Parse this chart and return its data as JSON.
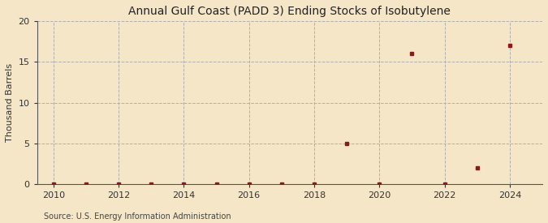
{
  "title": "Annual Gulf Coast (PADD 3) Ending Stocks of Isobutylene",
  "ylabel": "Thousand Barrels",
  "source": "Source: U.S. Energy Information Administration",
  "background_color": "#f5e6c8",
  "plot_bg_color": "#f5e6c8",
  "marker_color": "#8b1a1a",
  "years": [
    2010,
    2011,
    2012,
    2013,
    2014,
    2015,
    2016,
    2017,
    2018,
    2019,
    2020,
    2021,
    2022,
    2023,
    2024
  ],
  "values": [
    0,
    0,
    0,
    0,
    0,
    0,
    0,
    0,
    0,
    5,
    0,
    16,
    0,
    2,
    17
  ],
  "xlim": [
    2009.5,
    2025.0
  ],
  "ylim": [
    0,
    20
  ],
  "yticks": [
    0,
    5,
    10,
    15,
    20
  ],
  "xticks": [
    2010,
    2012,
    2014,
    2016,
    2018,
    2020,
    2022,
    2024
  ],
  "grid_color": "#b0b0b0",
  "grid_linestyle": "--",
  "title_fontsize": 10,
  "label_fontsize": 8,
  "tick_fontsize": 8,
  "source_fontsize": 7,
  "marker_size": 3.5
}
